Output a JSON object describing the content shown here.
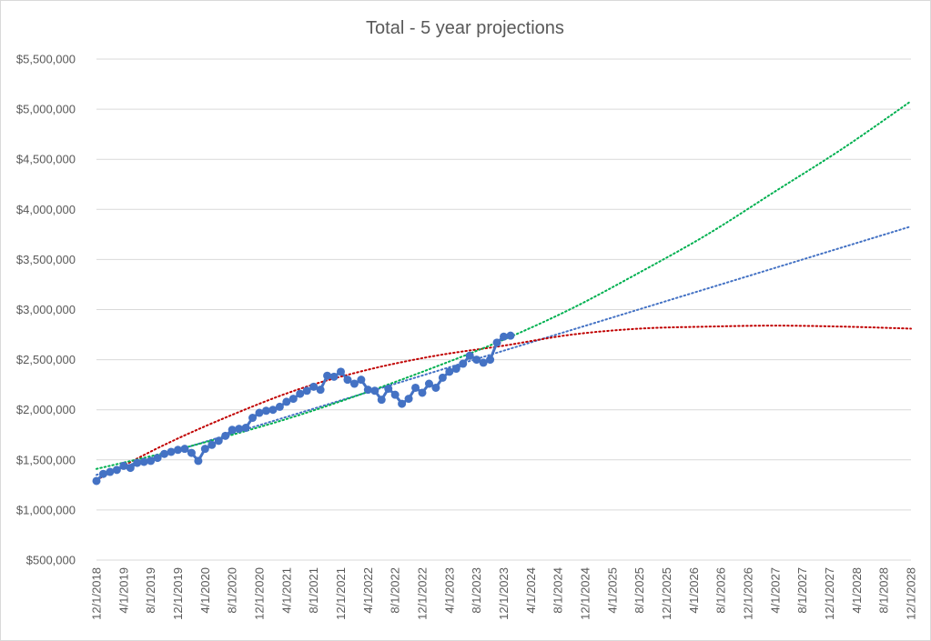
{
  "chart_data": {
    "type": "line",
    "title": "Total - 5 year projections",
    "xlabel": "",
    "ylabel": "",
    "ylim": [
      500000,
      5500000
    ],
    "y_ticks": [
      500000,
      1000000,
      1500000,
      2000000,
      2500000,
      3000000,
      3500000,
      4000000,
      4500000,
      5000000,
      5500000
    ],
    "y_tick_labels": [
      "$500,000",
      "$1,000,000",
      "$1,500,000",
      "$2,000,000",
      "$2,500,000",
      "$3,000,000",
      "$3,500,000",
      "$4,000,000",
      "$4,500,000",
      "$5,000,000",
      "$5,500,000"
    ],
    "x_tick_labels": [
      "12/1/2018",
      "4/1/2019",
      "8/1/2019",
      "12/1/2019",
      "4/1/2020",
      "8/1/2020",
      "12/1/2020",
      "4/1/2021",
      "8/1/2021",
      "12/1/2021",
      "4/1/2022",
      "8/1/2022",
      "12/1/2022",
      "4/1/2023",
      "8/1/2023",
      "12/1/2023",
      "4/1/2024",
      "8/1/2024",
      "12/1/2024",
      "4/1/2025",
      "8/1/2025",
      "12/1/2025",
      "4/1/2026",
      "8/1/2026",
      "12/1/2026",
      "4/1/2027",
      "8/1/2027",
      "12/1/2027",
      "4/1/2028",
      "8/1/2028",
      "12/1/2028"
    ],
    "grid": true,
    "legend": "none",
    "series": [
      {
        "role": "actual",
        "color": "#4472c4",
        "marker": "circle",
        "values": [
          1290000,
          1360000,
          1380000,
          1400000,
          1440000,
          1420000,
          1470000,
          1480000,
          1490000,
          1520000,
          1560000,
          1580000,
          1600000,
          1610000,
          1570000,
          1490000,
          1610000,
          1650000,
          1690000,
          1740000,
          1800000,
          1810000,
          1820000,
          1920000,
          1970000,
          1990000,
          2000000,
          2030000,
          2080000,
          2110000,
          2160000,
          2190000,
          2230000,
          2200000,
          2340000,
          2330000,
          2380000,
          2300000,
          2260000,
          2300000,
          2200000,
          2190000,
          2100000,
          2210000,
          2150000,
          2060000,
          2110000,
          2220000,
          2170000,
          2260000,
          2220000,
          2320000,
          2380000,
          2410000,
          2460000,
          2540000,
          2500000,
          2470000,
          2500000,
          2670000,
          2730000,
          2740000
        ]
      },
      {
        "role": "linear-trend",
        "color": "#4472c4",
        "style": "dotted",
        "x": [
          0,
          120
        ],
        "values": [
          1350000,
          3830000
        ]
      },
      {
        "role": "polynomial-trend",
        "color": "#c00000",
        "style": "dotted",
        "x": [
          0,
          10,
          20,
          30,
          40,
          50,
          60,
          70,
          80,
          90,
          100,
          110,
          120
        ],
        "values": [
          1300000,
          1650000,
          1950000,
          2210000,
          2400000,
          2540000,
          2640000,
          2750000,
          2810000,
          2830000,
          2840000,
          2830000,
          2810000
        ]
      },
      {
        "role": "exponential-trend",
        "color": "#00b050",
        "style": "dotted",
        "x": [
          0,
          10,
          20,
          30,
          40,
          50,
          60,
          70,
          80,
          90,
          100,
          110,
          120
        ],
        "values": [
          1410000,
          1570000,
          1750000,
          1950000,
          2180000,
          2430000,
          2700000,
          3010000,
          3370000,
          3750000,
          4180000,
          4610000,
          5080000
        ]
      }
    ]
  }
}
